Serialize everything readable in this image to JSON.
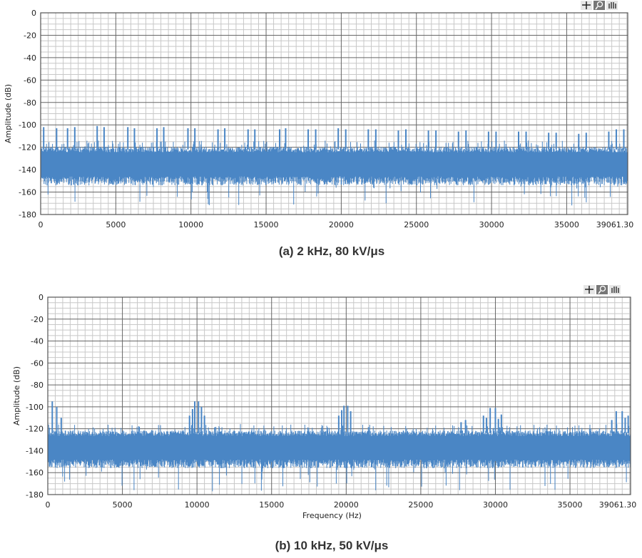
{
  "chart_data": [
    {
      "type": "line",
      "caption": "(a) 2 kHz, 80 kV/μs",
      "xlabel": "",
      "ylabel": "Amplitude (dB)",
      "xlim": [
        0,
        39061.3
      ],
      "ylim": [
        -180,
        0
      ],
      "xticks": [
        "0",
        "5000",
        "10000",
        "15000",
        "20000",
        "25000",
        "30000",
        "35000",
        "39061.30"
      ],
      "yticks": [
        "0",
        "-20",
        "-40",
        "-60",
        "-80",
        "-100",
        "-120",
        "-140",
        "-160",
        "-180"
      ],
      "grid": true,
      "color": "#4a86c5",
      "noise_floor": {
        "upper": -122,
        "lower": -150,
        "min": -172
      },
      "spurs": [
        {
          "x": 200,
          "y": -102
        },
        {
          "x": 1060,
          "y": -103
        },
        {
          "x": 1790,
          "y": -103
        },
        {
          "x": 2270,
          "y": -102
        },
        {
          "x": 3760,
          "y": -101
        },
        {
          "x": 4220,
          "y": -102
        },
        {
          "x": 5800,
          "y": -102
        },
        {
          "x": 6240,
          "y": -103
        },
        {
          "x": 7740,
          "y": -103
        },
        {
          "x": 8190,
          "y": -102
        },
        {
          "x": 9800,
          "y": -103
        },
        {
          "x": 10260,
          "y": -103
        },
        {
          "x": 11800,
          "y": -104
        },
        {
          "x": 12250,
          "y": -103
        },
        {
          "x": 13800,
          "y": -104
        },
        {
          "x": 14250,
          "y": -104
        },
        {
          "x": 15900,
          "y": -104
        },
        {
          "x": 16300,
          "y": -103
        },
        {
          "x": 17800,
          "y": -104
        },
        {
          "x": 18300,
          "y": -104
        },
        {
          "x": 19800,
          "y": -103
        },
        {
          "x": 20300,
          "y": -104
        },
        {
          "x": 21800,
          "y": -104
        },
        {
          "x": 22300,
          "y": -104
        },
        {
          "x": 23800,
          "y": -105
        },
        {
          "x": 24300,
          "y": -104
        },
        {
          "x": 25800,
          "y": -105
        },
        {
          "x": 26300,
          "y": -105
        },
        {
          "x": 27800,
          "y": -106
        },
        {
          "x": 28300,
          "y": -105
        },
        {
          "x": 29800,
          "y": -106
        },
        {
          "x": 30300,
          "y": -106
        },
        {
          "x": 31800,
          "y": -106
        },
        {
          "x": 32300,
          "y": -106
        },
        {
          "x": 33800,
          "y": -107
        },
        {
          "x": 34300,
          "y": -107
        },
        {
          "x": 35800,
          "y": -108
        },
        {
          "x": 36300,
          "y": -107
        },
        {
          "x": 37800,
          "y": -106
        },
        {
          "x": 38300,
          "y": -104
        },
        {
          "x": 38800,
          "y": -104
        }
      ]
    },
    {
      "type": "line",
      "caption": "(b) 10 kHz, 50 kV/μs",
      "xlabel": "Frequency (Hz)",
      "ylabel": "Amplitude (dB)",
      "xlim": [
        0,
        39061.3
      ],
      "ylim": [
        -180,
        0
      ],
      "xticks": [
        "0",
        "5000",
        "10000",
        "15000",
        "20000",
        "25000",
        "30000",
        "35000",
        "39061.30"
      ],
      "yticks": [
        "0",
        "-20",
        "-40",
        "-60",
        "-80",
        "-100",
        "-120",
        "-140",
        "-160",
        "-180"
      ],
      "grid": true,
      "color": "#4a86c5",
      "noise_floor": {
        "upper": -124,
        "lower": -152,
        "min": -177
      },
      "spurs": [
        {
          "x": 300,
          "y": -95
        },
        {
          "x": 600,
          "y": -100
        },
        {
          "x": 900,
          "y": -110
        },
        {
          "x": 9500,
          "y": -108
        },
        {
          "x": 9700,
          "y": -102
        },
        {
          "x": 9850,
          "y": -95
        },
        {
          "x": 10100,
          "y": -95
        },
        {
          "x": 10300,
          "y": -100
        },
        {
          "x": 10500,
          "y": -108
        },
        {
          "x": 19500,
          "y": -108
        },
        {
          "x": 19700,
          "y": -103
        },
        {
          "x": 19850,
          "y": -99
        },
        {
          "x": 20100,
          "y": -99
        },
        {
          "x": 20300,
          "y": -104
        },
        {
          "x": 27700,
          "y": -114
        },
        {
          "x": 28000,
          "y": -112
        },
        {
          "x": 29200,
          "y": -108
        },
        {
          "x": 29400,
          "y": -110
        },
        {
          "x": 29650,
          "y": -101
        },
        {
          "x": 30000,
          "y": -101
        },
        {
          "x": 30200,
          "y": -111
        },
        {
          "x": 30400,
          "y": -107
        },
        {
          "x": 37800,
          "y": -112
        },
        {
          "x": 38100,
          "y": -104
        },
        {
          "x": 38500,
          "y": -104
        },
        {
          "x": 38700,
          "y": -110
        },
        {
          "x": 38900,
          "y": -108
        }
      ]
    }
  ],
  "toolbar": {
    "icons": [
      "cursor-icon",
      "zoom-icon",
      "pan-hand-icon"
    ]
  }
}
